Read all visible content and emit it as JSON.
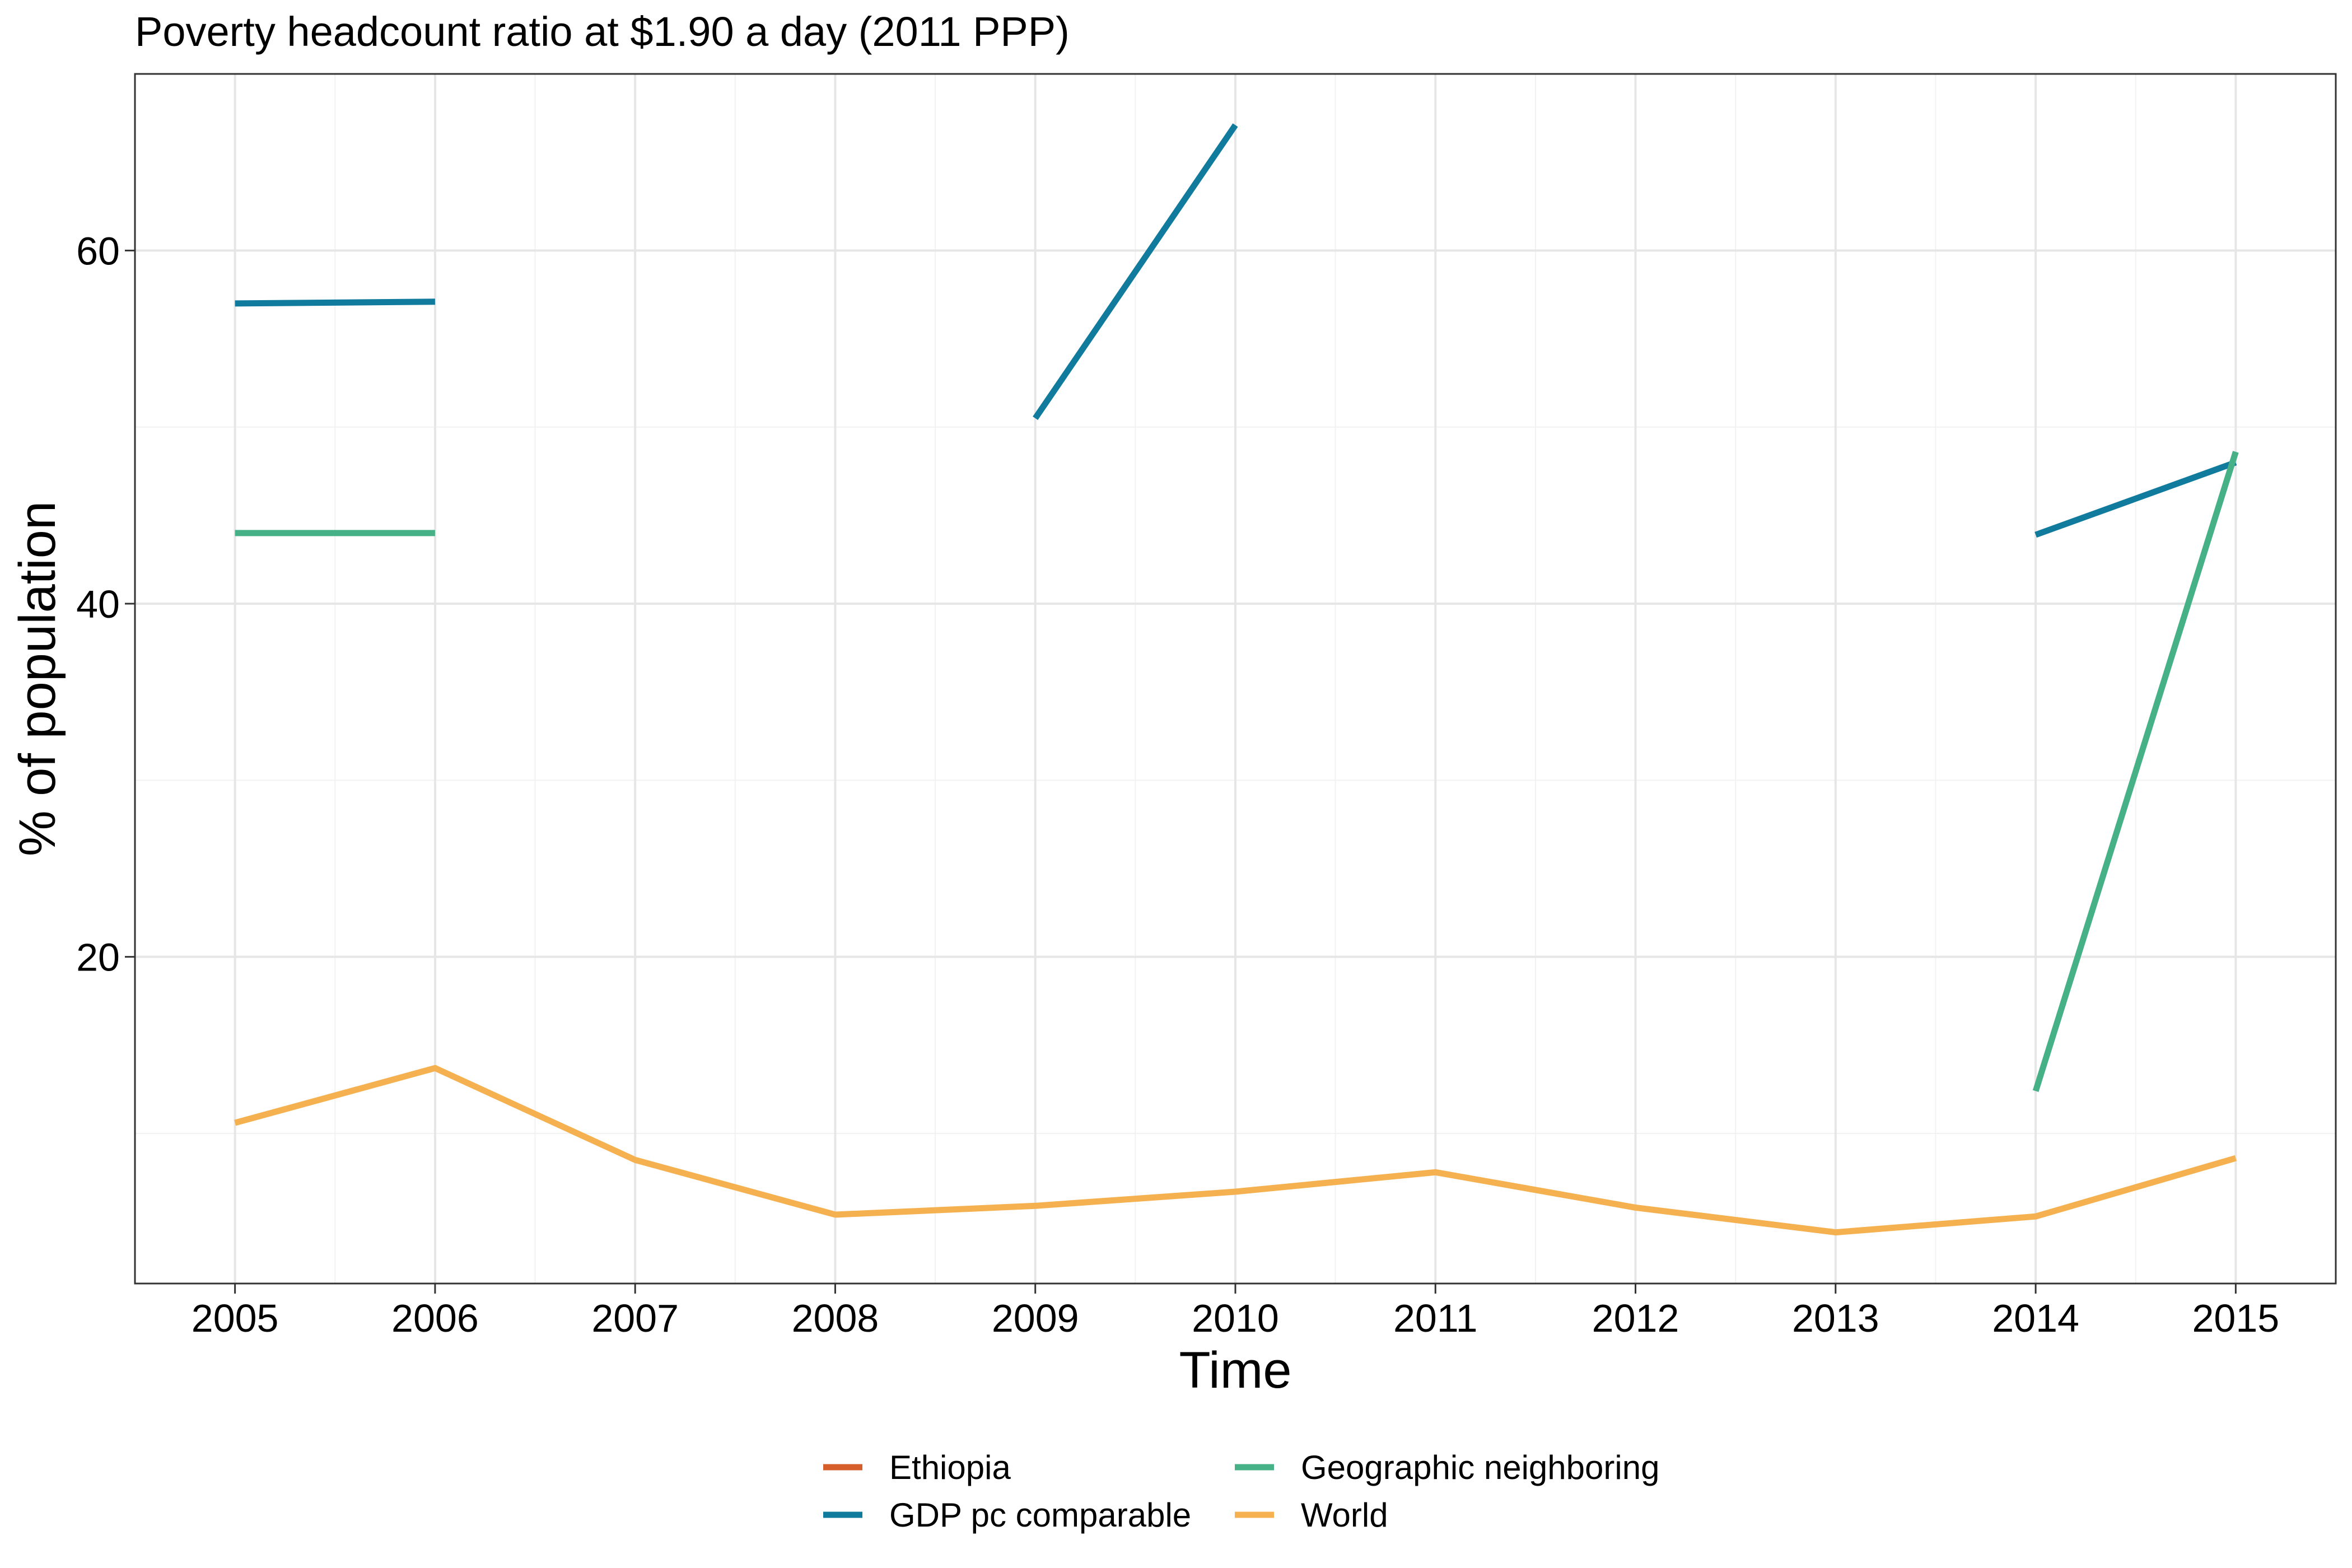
{
  "chart_data": {
    "type": "line",
    "title": "Poverty headcount ratio at $1.90 a day (2011 PPP)",
    "xlabel": "Time",
    "ylabel": "% of population",
    "xlim": [
      2004.5,
      2015.5
    ],
    "ylim": [
      1.5,
      70
    ],
    "x_ticks": [
      2005,
      2006,
      2007,
      2008,
      2009,
      2010,
      2011,
      2012,
      2013,
      2014,
      2015
    ],
    "y_ticks": [
      20,
      40,
      60
    ],
    "grid": true,
    "legend_position": "bottom",
    "series": [
      {
        "name": "Ethiopia",
        "color": "#D55E2B",
        "segments": []
      },
      {
        "name": "GDP pc comparable",
        "color": "#117B9E",
        "segments": [
          [
            [
              2005,
              57.0
            ],
            [
              2006,
              57.1
            ]
          ],
          [
            [
              2009,
              50.5
            ],
            [
              2010,
              67.1
            ]
          ],
          [
            [
              2014,
              43.9
            ],
            [
              2015,
              48.0
            ]
          ]
        ]
      },
      {
        "name": "Geographic neighboring",
        "color": "#46B087",
        "segments": [
          [
            [
              2005,
              44.0
            ],
            [
              2006,
              44.0
            ]
          ],
          [
            [
              2014,
              12.4
            ],
            [
              2015,
              48.6
            ]
          ]
        ]
      },
      {
        "name": "World",
        "color": "#F5B04F",
        "segments": [
          [
            [
              2005,
              10.6
            ],
            [
              2006,
              13.7
            ],
            [
              2007,
              8.5
            ],
            [
              2008,
              5.4
            ],
            [
              2009,
              5.9
            ],
            [
              2010,
              6.7
            ],
            [
              2011,
              7.8
            ],
            [
              2012,
              5.8
            ],
            [
              2013,
              4.4
            ],
            [
              2014,
              5.3
            ],
            [
              2015,
              8.6
            ]
          ]
        ]
      }
    ]
  }
}
